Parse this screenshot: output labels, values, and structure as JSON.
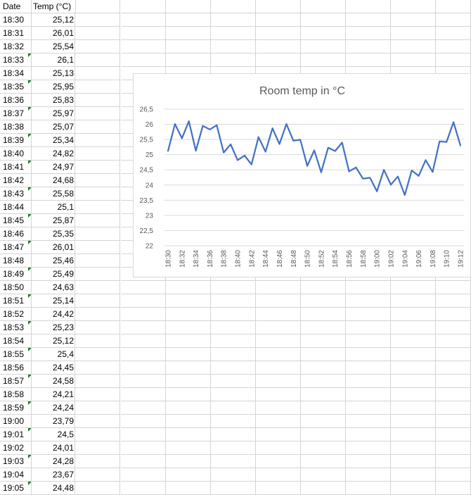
{
  "sheet": {
    "headers": {
      "date": "Date",
      "temp": "Temp (°C)"
    },
    "rows": [
      {
        "date": "18:30",
        "temp": "25,12"
      },
      {
        "date": "18:31",
        "temp": "26,01"
      },
      {
        "date": "18:32",
        "temp": "25,54"
      },
      {
        "date": "18:33",
        "temp": "26,1"
      },
      {
        "date": "18:34",
        "temp": "25,13"
      },
      {
        "date": "18:35",
        "temp": "25,95"
      },
      {
        "date": "18:36",
        "temp": "25,83"
      },
      {
        "date": "18:37",
        "temp": "25,97"
      },
      {
        "date": "18:38",
        "temp": "25,07"
      },
      {
        "date": "18:39",
        "temp": "25,34"
      },
      {
        "date": "18:40",
        "temp": "24,82"
      },
      {
        "date": "18:41",
        "temp": "24,97"
      },
      {
        "date": "18:42",
        "temp": "24,68"
      },
      {
        "date": "18:43",
        "temp": "25,58"
      },
      {
        "date": "18:44",
        "temp": "25,1"
      },
      {
        "date": "18:45",
        "temp": "25,87"
      },
      {
        "date": "18:46",
        "temp": "25,35"
      },
      {
        "date": "18:47",
        "temp": "26,01"
      },
      {
        "date": "18:48",
        "temp": "25,46"
      },
      {
        "date": "18:49",
        "temp": "25,49"
      },
      {
        "date": "18:50",
        "temp": "24,63"
      },
      {
        "date": "18:51",
        "temp": "25,14"
      },
      {
        "date": "18:52",
        "temp": "24,42"
      },
      {
        "date": "18:53",
        "temp": "25,23"
      },
      {
        "date": "18:54",
        "temp": "25,12"
      },
      {
        "date": "18:55",
        "temp": "25,4"
      },
      {
        "date": "18:56",
        "temp": "24,45"
      },
      {
        "date": "18:57",
        "temp": "24,58"
      },
      {
        "date": "18:58",
        "temp": "24,21"
      },
      {
        "date": "18:59",
        "temp": "24,24"
      },
      {
        "date": "19:00",
        "temp": "23,79"
      },
      {
        "date": "19:01",
        "temp": "24,5"
      },
      {
        "date": "19:02",
        "temp": "24,01"
      },
      {
        "date": "19:03",
        "temp": "24,28"
      },
      {
        "date": "19:04",
        "temp": "23,67"
      },
      {
        "date": "19:05",
        "temp": "24,48"
      }
    ],
    "flagged_rows": [
      "18:33",
      "18:35",
      "18:37",
      "18:39",
      "18:41",
      "18:43",
      "18:45",
      "18:47",
      "18:49",
      "18:51",
      "18:53",
      "18:55",
      "18:57",
      "18:59",
      "19:01",
      "19:03",
      "19:05"
    ],
    "colors": {
      "gridline": "#d4d4d4",
      "error_flag": "#1e7a32"
    }
  },
  "chart_data": {
    "type": "line",
    "title": "Room temp in °C",
    "xlabel": "",
    "ylabel": "",
    "x": [
      "18:30",
      "18:31",
      "18:32",
      "18:33",
      "18:34",
      "18:35",
      "18:36",
      "18:37",
      "18:38",
      "18:39",
      "18:40",
      "18:41",
      "18:42",
      "18:43",
      "18:44",
      "18:45",
      "18:46",
      "18:47",
      "18:48",
      "18:49",
      "18:50",
      "18:51",
      "18:52",
      "18:53",
      "18:54",
      "18:55",
      "18:56",
      "18:57",
      "18:58",
      "18:59",
      "19:00",
      "19:01",
      "19:02",
      "19:03",
      "19:04",
      "19:05",
      "19:06",
      "19:07",
      "19:08",
      "19:09",
      "19:10",
      "19:11",
      "19:12"
    ],
    "x_tick_labels": [
      "18:30",
      "18:32",
      "18:34",
      "18:36",
      "18:38",
      "18:40",
      "18:42",
      "18:44",
      "18:46",
      "18:48",
      "18:50",
      "18:52",
      "18:54",
      "18:56",
      "18:58",
      "19:00",
      "19:02",
      "19:04",
      "19:06",
      "19:08",
      "19:10",
      "19:12"
    ],
    "series": [
      {
        "values": [
          25.12,
          26.01,
          25.54,
          26.1,
          25.13,
          25.95,
          25.83,
          25.97,
          25.07,
          25.34,
          24.82,
          24.97,
          24.68,
          25.58,
          25.1,
          25.87,
          25.35,
          26.01,
          25.46,
          25.49,
          24.63,
          25.14,
          24.42,
          25.23,
          25.12,
          25.4,
          24.45,
          24.58,
          24.21,
          24.24,
          23.79,
          24.5,
          24.01,
          24.28,
          23.67,
          24.48,
          24.3,
          24.82,
          24.43,
          25.44,
          25.42,
          26.07,
          25.3
        ]
      }
    ],
    "y_ticks": [
      "22",
      "22,5",
      "23",
      "23,5",
      "24",
      "24,5",
      "25",
      "25,5",
      "26",
      "26,5"
    ],
    "ylim": [
      22,
      26.5
    ],
    "grid": true,
    "legend": "none",
    "colors": {
      "line": "#4472c4",
      "grid": "#d9d9d9",
      "text": "#595959"
    }
  }
}
